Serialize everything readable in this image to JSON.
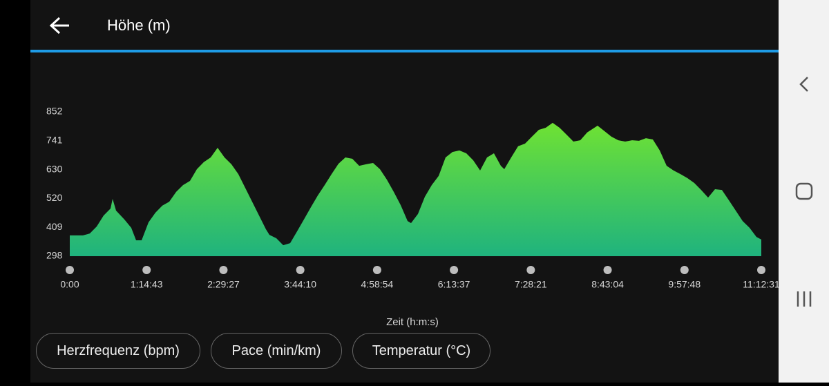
{
  "header": {
    "title": "Höhe (m)"
  },
  "chart_data": {
    "type": "area",
    "x_label": "Zeit (h:m:s)",
    "x": [
      0,
      766,
      1169,
      1572,
      1975,
      2378,
      2499,
      2701,
      3184,
      3587,
      3870,
      4192,
      4595,
      4998,
      5402,
      5805,
      6208,
      6611,
      7014,
      7417,
      7820,
      8223,
      8626,
      9029,
      9432,
      9836,
      10239,
      10642,
      11045,
      11448,
      11649,
      12052,
      12455,
      12859,
      13262,
      13665,
      14068,
      14471,
      14874,
      15277,
      15680,
      16083,
      16486,
      16889,
      17293,
      17696,
      18099,
      18502,
      18905,
      19308,
      19711,
      19913,
      20316,
      20719,
      21122,
      21525,
      21928,
      22331,
      22735,
      23138,
      23541,
      23944,
      24347,
      24750,
      25153,
      25355,
      25758,
      26161,
      26564,
      26967,
      27370,
      27773,
      28176,
      28580,
      28983,
      29386,
      29789,
      30192,
      30797,
      31200,
      31603,
      32006,
      32409,
      32812,
      33215,
      33619,
      34022,
      34425,
      34828,
      35231,
      35634,
      36037,
      36440,
      36843,
      37246,
      37650,
      38053,
      38456,
      38859,
      39262,
      39665,
      40068,
      40351
    ],
    "values": [
      378,
      378,
      385,
      412,
      454,
      481,
      518,
      473,
      439,
      407,
      359,
      359,
      428,
      465,
      492,
      507,
      545,
      571,
      587,
      632,
      659,
      677,
      714,
      677,
      651,
      613,
      560,
      507,
      454,
      401,
      380,
      367,
      340,
      348,
      393,
      439,
      486,
      531,
      571,
      613,
      653,
      677,
      672,
      645,
      651,
      656,
      632,
      592,
      545,
      494,
      433,
      425,
      460,
      526,
      571,
      606,
      677,
      698,
      704,
      693,
      666,
      627,
      677,
      693,
      645,
      632,
      677,
      720,
      730,
      757,
      783,
      791,
      810,
      791,
      765,
      738,
      743,
      773,
      799,
      778,
      757,
      743,
      738,
      743,
      741,
      751,
      746,
      704,
      645,
      627,
      613,
      598,
      579,
      552,
      523,
      555,
      552,
      513,
      473,
      433,
      407,
      372,
      362
    ],
    "colors": [
      "#6fe233",
      "#1fb37e"
    ],
    "xlim": [
      0,
      40351
    ],
    "xticks": [
      {
        "value": 0,
        "label": "0:00"
      },
      {
        "value": 4483,
        "label": "1:14:43"
      },
      {
        "value": 8967,
        "label": "2:29:27"
      },
      {
        "value": 13450,
        "label": "3:44:10"
      },
      {
        "value": 17934,
        "label": "4:58:54"
      },
      {
        "value": 22417,
        "label": "6:13:37"
      },
      {
        "value": 26901,
        "label": "7:28:21"
      },
      {
        "value": 31384,
        "label": "8:43:04"
      },
      {
        "value": 35868,
        "label": "9:57:48"
      },
      {
        "value": 40351,
        "label": "11:12:31"
      }
    ],
    "ylim": [
      298,
      852
    ],
    "yticks": [
      298,
      409,
      520,
      630,
      741,
      852
    ]
  },
  "buttons": [
    "Herzfrequenz (bpm)",
    "Pace (min/km)",
    "Temperatur (°C)"
  ]
}
